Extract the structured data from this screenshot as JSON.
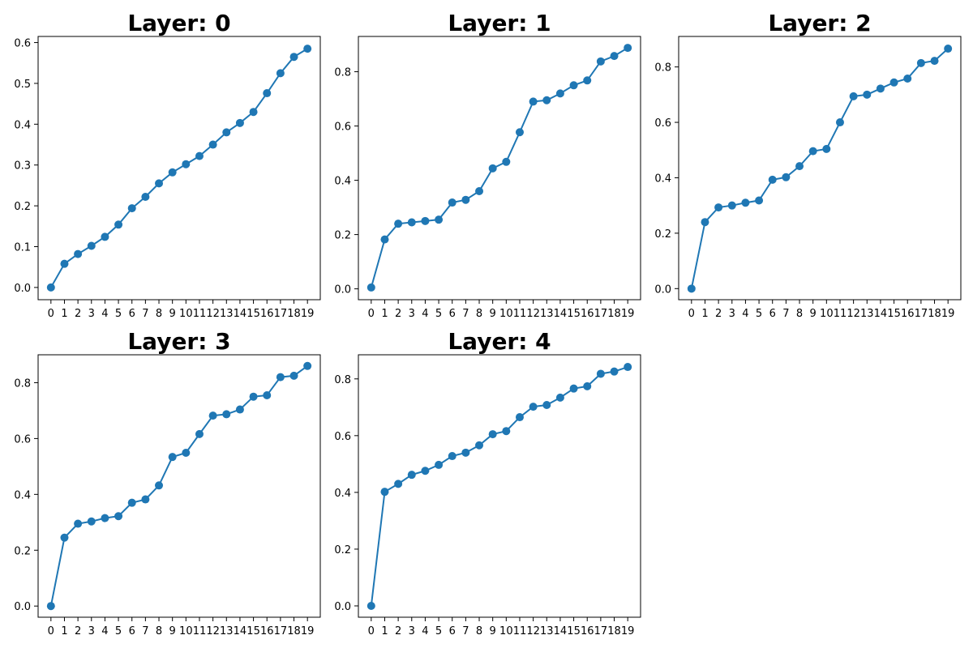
{
  "colors": {
    "series": "#1f77b4"
  },
  "chart_data": [
    {
      "type": "line",
      "title": "Layer: 0",
      "x": [
        0,
        1,
        2,
        3,
        4,
        5,
        6,
        7,
        8,
        9,
        10,
        11,
        12,
        13,
        14,
        15,
        16,
        17,
        18,
        19
      ],
      "x_tick_labels": [
        "0",
        "1",
        "2",
        "3",
        "4",
        "5",
        "6",
        "7",
        "8",
        "9",
        "10",
        "11",
        "12",
        "13",
        "14",
        "15",
        "16",
        "17",
        "18",
        "19"
      ],
      "values": [
        0.0,
        0.058,
        0.082,
        0.102,
        0.124,
        0.154,
        0.194,
        0.222,
        0.255,
        0.282,
        0.302,
        0.322,
        0.35,
        0.38,
        0.403,
        0.43,
        0.476,
        0.525,
        0.565,
        0.585
      ],
      "ylim": [
        -0.03,
        0.615
      ],
      "y_ticks": [
        0.0,
        0.1,
        0.2,
        0.3,
        0.4,
        0.5,
        0.6
      ],
      "y_tick_labels": [
        "0.0",
        "0.1",
        "0.2",
        "0.3",
        "0.4",
        "0.5",
        "0.6"
      ],
      "grid": false,
      "marker": "circle"
    },
    {
      "type": "line",
      "title": "Layer: 1",
      "x": [
        0,
        1,
        2,
        3,
        4,
        5,
        6,
        7,
        8,
        9,
        10,
        11,
        12,
        13,
        14,
        15,
        16,
        17,
        18,
        19
      ],
      "x_tick_labels": [
        "0",
        "1",
        "2",
        "3",
        "4",
        "5",
        "6",
        "7",
        "8",
        "9",
        "10",
        "11",
        "12",
        "13",
        "14",
        "15",
        "16",
        "17",
        "18",
        "19"
      ],
      "values": [
        0.005,
        0.182,
        0.24,
        0.245,
        0.25,
        0.255,
        0.318,
        0.328,
        0.36,
        0.444,
        0.468,
        0.577,
        0.69,
        0.695,
        0.72,
        0.75,
        0.768,
        0.838,
        0.858,
        0.888
      ],
      "ylim": [
        -0.04,
        0.93
      ],
      "y_ticks": [
        0.0,
        0.2,
        0.4,
        0.6,
        0.8
      ],
      "y_tick_labels": [
        "0.0",
        "0.2",
        "0.4",
        "0.6",
        "0.8"
      ],
      "grid": false,
      "marker": "circle"
    },
    {
      "type": "line",
      "title": "Layer: 2",
      "x": [
        0,
        1,
        2,
        3,
        4,
        5,
        6,
        7,
        8,
        9,
        10,
        11,
        12,
        13,
        14,
        15,
        16,
        17,
        18,
        19
      ],
      "x_tick_labels": [
        "0",
        "1",
        "2",
        "3",
        "4",
        "5",
        "6",
        "7",
        "8",
        "9",
        "10",
        "11",
        "12",
        "13",
        "14",
        "15",
        "16",
        "17",
        "18",
        "19"
      ],
      "values": [
        0.0,
        0.24,
        0.293,
        0.3,
        0.31,
        0.318,
        0.393,
        0.402,
        0.442,
        0.496,
        0.504,
        0.6,
        0.694,
        0.7,
        0.722,
        0.744,
        0.758,
        0.814,
        0.822,
        0.866
      ],
      "ylim": [
        -0.04,
        0.91
      ],
      "y_ticks": [
        0.0,
        0.2,
        0.4,
        0.6,
        0.8
      ],
      "y_tick_labels": [
        "0.0",
        "0.2",
        "0.4",
        "0.6",
        "0.8"
      ],
      "grid": false,
      "marker": "circle"
    },
    {
      "type": "line",
      "title": "Layer: 3",
      "x": [
        0,
        1,
        2,
        3,
        4,
        5,
        6,
        7,
        8,
        9,
        10,
        11,
        12,
        13,
        14,
        15,
        16,
        17,
        18,
        19
      ],
      "x_tick_labels": [
        "0",
        "1",
        "2",
        "3",
        "4",
        "5",
        "6",
        "7",
        "8",
        "9",
        "10",
        "11",
        "12",
        "13",
        "14",
        "15",
        "16",
        "17",
        "18",
        "19"
      ],
      "values": [
        0.0,
        0.245,
        0.295,
        0.303,
        0.315,
        0.322,
        0.37,
        0.382,
        0.432,
        0.534,
        0.549,
        0.616,
        0.682,
        0.687,
        0.704,
        0.75,
        0.755,
        0.82,
        0.825,
        0.86
      ],
      "ylim": [
        -0.04,
        0.9
      ],
      "y_ticks": [
        0.0,
        0.2,
        0.4,
        0.6,
        0.8
      ],
      "y_tick_labels": [
        "0.0",
        "0.2",
        "0.4",
        "0.6",
        "0.8"
      ],
      "grid": false,
      "marker": "circle"
    },
    {
      "type": "line",
      "title": "Layer: 4",
      "x": [
        0,
        1,
        2,
        3,
        4,
        5,
        6,
        7,
        8,
        9,
        10,
        11,
        12,
        13,
        14,
        15,
        16,
        17,
        18,
        19
      ],
      "x_tick_labels": [
        "0",
        "1",
        "2",
        "3",
        "4",
        "5",
        "6",
        "7",
        "8",
        "9",
        "10",
        "11",
        "12",
        "13",
        "14",
        "15",
        "16",
        "17",
        "18",
        "19"
      ],
      "values": [
        0.0,
        0.402,
        0.43,
        0.462,
        0.476,
        0.497,
        0.528,
        0.54,
        0.566,
        0.605,
        0.616,
        0.665,
        0.702,
        0.708,
        0.734,
        0.766,
        0.774,
        0.818,
        0.826,
        0.842
      ],
      "ylim": [
        -0.04,
        0.885
      ],
      "y_ticks": [
        0.0,
        0.2,
        0.4,
        0.6,
        0.8
      ],
      "y_tick_labels": [
        "0.0",
        "0.2",
        "0.4",
        "0.6",
        "0.8"
      ],
      "grid": false,
      "marker": "circle"
    }
  ]
}
